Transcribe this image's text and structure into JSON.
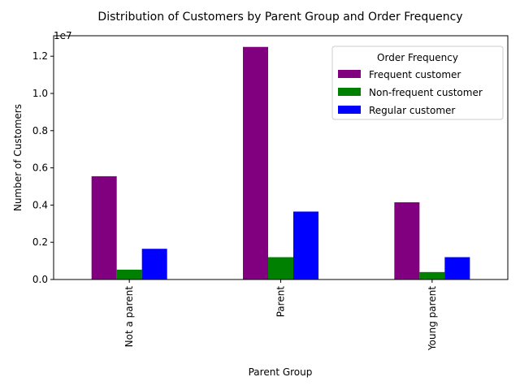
{
  "chart_data": {
    "type": "bar",
    "title": "Distribution of Customers by Parent Group and Order Frequency",
    "xlabel": "Parent Group",
    "ylabel": "Number of Customers",
    "y_multiplier_label": "1e7",
    "categories": [
      "Not a parent",
      "Parent",
      "Young parent"
    ],
    "series": [
      {
        "name": "Frequent customer",
        "color": "#800080",
        "values": [
          5550000,
          12500000,
          4150000
        ]
      },
      {
        "name": "Non-frequent customer",
        "color": "#008000",
        "values": [
          530000,
          1200000,
          400000
        ]
      },
      {
        "name": "Regular customer",
        "color": "#0000ff",
        "values": [
          1650000,
          3650000,
          1200000
        ]
      }
    ],
    "ylim": [
      0,
      13100000
    ],
    "yticks": [
      0,
      2000000,
      4000000,
      6000000,
      8000000,
      10000000,
      12000000
    ],
    "ytick_labels": [
      "0.0",
      "0.2",
      "0.4",
      "0.6",
      "0.8",
      "1.0",
      "1.2"
    ],
    "legend": {
      "title": "Order Frequency",
      "placement": "upper-right"
    },
    "grid": false
  }
}
